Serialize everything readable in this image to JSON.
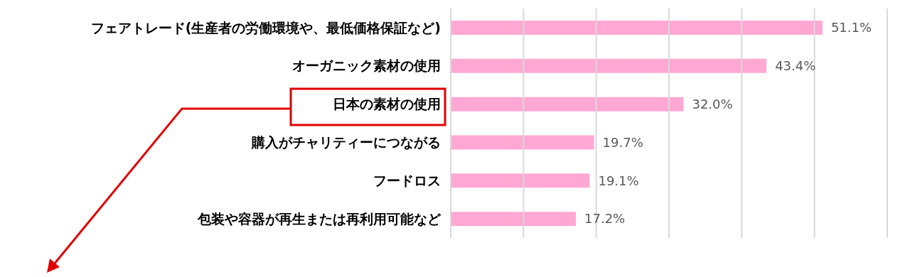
{
  "chart_data": {
    "type": "bar",
    "orientation": "horizontal",
    "categories": [
      "フェアトレード(生産者の労働環境や、最低価格保証など)",
      "オーガニック素材の使用",
      "日本の素材の使用",
      "購入がチャリティーにつながる",
      "フードロス",
      "包装や容器が再生または再利用可能など"
    ],
    "values": [
      51.1,
      43.4,
      32.0,
      19.7,
      19.1,
      17.2
    ],
    "value_labels": [
      "51.1%",
      "43.4%",
      "32.0%",
      "19.7%",
      "19.1%",
      "17.2%"
    ],
    "color": "#ffa8d4",
    "xlim": [
      0,
      60
    ],
    "xticks": [
      {
        "value": 0,
        "label": null
      },
      {
        "value": 10,
        "label": null
      },
      {
        "value": 20,
        "label": null
      },
      {
        "value": 30,
        "label": null
      },
      {
        "value": 40,
        "label": null
      },
      {
        "value": 50,
        "label": null
      },
      {
        "value": 60,
        "label": null
      }
    ],
    "tick_labels": "y",
    "grid": "x"
  }
}
